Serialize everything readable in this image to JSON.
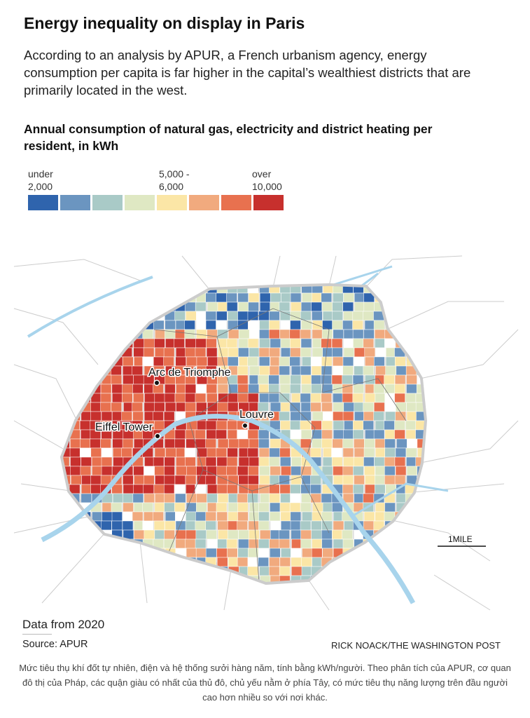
{
  "title": "Energy inequality on display in Paris",
  "dek": "According to an analysis by APUR, a French urbanism agency, energy consumption per capita is far higher in the capital’s wealthiest districts that are primarily located in the west.",
  "chart_title": "Annual consumption of natural gas, electricity and district heating per resident, in kWh",
  "legend": {
    "low_label_1": "under",
    "low_label_2": "2,000",
    "mid_label_1": "5,000 -",
    "mid_label_2": "6,000",
    "high_label_1": "over",
    "high_label_2": "10,000",
    "colors": [
      "#2f64ad",
      "#6b95c0",
      "#a9cac7",
      "#dfe8c3",
      "#fbe6a6",
      "#f1aa7e",
      "#e8714f",
      "#c7302d"
    ]
  },
  "map": {
    "labels": {
      "arc": "Arc de Triomphe",
      "louvre": "Louvre",
      "eiffel": "Eiffel Tower"
    },
    "scale": "1MILE",
    "river_color": "#a8d4ec"
  },
  "footer": {
    "note": "Data from 2020",
    "source": "Source: APUR",
    "credit": "RICK NOACK/THE WASHINGTON POST"
  },
  "caption": "Mức tiêu thụ khí đốt tự nhiên, điện và hệ thống sưởi hàng năm, tính bằng kWh/người. Theo phân tích của APUR, cơ quan đô thị của Pháp, các quận giàu có nhất của thủ đô, chủ yếu nằm ở phía Tây, có mức tiêu thụ năng lượng trên đầu người cao hơn nhiều so với nơi khác."
}
